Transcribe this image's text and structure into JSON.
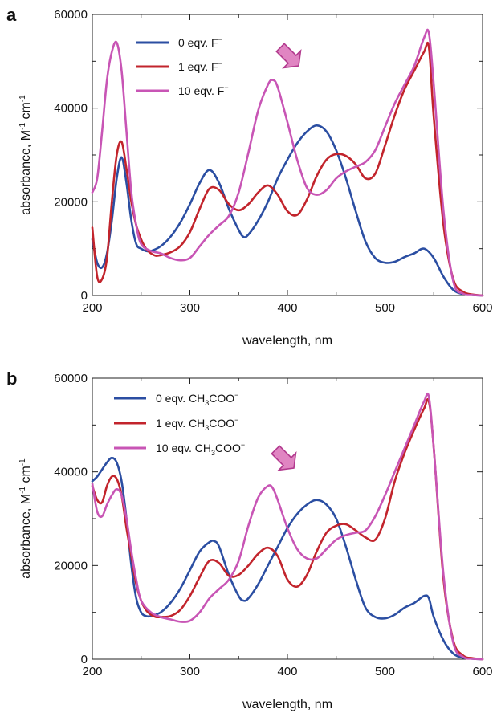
{
  "colors": {
    "blue": "#2b4ea2",
    "red": "#c2242c",
    "magenta": "#c855b5"
  },
  "chart_data": [
    {
      "type": "line",
      "panel": "a",
      "xlabel": "wavelength, nm",
      "ylabel": "absorbance, M",
      "xlim": [
        200,
        600
      ],
      "ylim": [
        0,
        60000
      ],
      "xticks": [
        "200",
        "300",
        "400",
        "500",
        "600"
      ],
      "yticks": [
        "0",
        "20000",
        "40000",
        "60000"
      ],
      "grid": false,
      "legend_position": "top-left",
      "annotation": "arrow-down-left",
      "series": [
        {
          "name": "0 eqv. F",
          "color": "#2b4ea2",
          "x": [
            200,
            205,
            210,
            215,
            220,
            225,
            230,
            235,
            240,
            245,
            250,
            255,
            260,
            270,
            280,
            290,
            300,
            310,
            320,
            330,
            340,
            350,
            355,
            360,
            370,
            380,
            390,
            400,
            410,
            420,
            430,
            440,
            450,
            460,
            470,
            480,
            490,
            500,
            510,
            520,
            530,
            540,
            550,
            560,
            570,
            580,
            590,
            600
          ],
          "y": [
            12000,
            7000,
            6000,
            9000,
            16000,
            25000,
            29500,
            24000,
            16000,
            11000,
            10000,
            9500,
            9500,
            10500,
            12500,
            15500,
            19500,
            24000,
            26800,
            24000,
            18500,
            14000,
            12500,
            13000,
            16000,
            20000,
            25000,
            29000,
            32500,
            35000,
            36300,
            35000,
            31000,
            25000,
            18000,
            11500,
            8000,
            7000,
            7200,
            8200,
            9000,
            10000,
            8000,
            4000,
            1200,
            300,
            100,
            0
          ]
        },
        {
          "name": "1 eqv. F",
          "color": "#c2242c",
          "x": [
            200,
            205,
            210,
            215,
            220,
            225,
            230,
            235,
            240,
            245,
            250,
            255,
            260,
            265,
            270,
            280,
            290,
            300,
            310,
            320,
            330,
            340,
            350,
            360,
            370,
            380,
            390,
            400,
            410,
            420,
            430,
            440,
            450,
            460,
            470,
            480,
            490,
            500,
            510,
            520,
            530,
            540,
            545,
            550,
            560,
            570,
            580,
            590,
            600
          ],
          "y": [
            14500,
            4000,
            3500,
            8000,
            20000,
            30000,
            32800,
            27000,
            20000,
            15000,
            12000,
            10000,
            9000,
            8500,
            8600,
            9200,
            10500,
            13500,
            18500,
            22800,
            22500,
            19500,
            18200,
            19500,
            22000,
            23500,
            21500,
            18000,
            17200,
            20500,
            25500,
            29000,
            30200,
            29800,
            28000,
            25000,
            26000,
            32000,
            38500,
            44000,
            48000,
            52000,
            53000,
            38000,
            15000,
            3500,
            800,
            200,
            0
          ]
        },
        {
          "name": "10 eqv. F",
          "color": "#c855b5",
          "x": [
            200,
            205,
            210,
            215,
            220,
            225,
            230,
            235,
            240,
            245,
            250,
            260,
            270,
            280,
            290,
            300,
            310,
            320,
            330,
            340,
            350,
            360,
            370,
            380,
            385,
            390,
            400,
            410,
            420,
            430,
            440,
            450,
            460,
            470,
            480,
            490,
            500,
            510,
            520,
            530,
            540,
            545,
            550,
            560,
            570,
            580,
            590,
            600
          ],
          "y": [
            22000,
            25000,
            35000,
            46000,
            52000,
            54000,
            48000,
            35000,
            22000,
            15000,
            11000,
            9500,
            9000,
            8000,
            7500,
            8000,
            10500,
            13000,
            15000,
            17000,
            22000,
            30500,
            39500,
            45000,
            46000,
            44500,
            37000,
            29000,
            23000,
            21500,
            22500,
            25000,
            26500,
            27500,
            28500,
            31000,
            36000,
            41000,
            45000,
            49000,
            55000,
            56000,
            45000,
            18000,
            3000,
            400,
            100,
            0
          ]
        }
      ]
    },
    {
      "type": "line",
      "panel": "b",
      "xlabel": "wavelength, nm",
      "ylabel": "absorbance, M",
      "xlim": [
        200,
        600
      ],
      "ylim": [
        0,
        60000
      ],
      "xticks": [
        "200",
        "300",
        "400",
        "500",
        "600"
      ],
      "yticks": [
        "0",
        "20000",
        "40000",
        "60000"
      ],
      "grid": false,
      "legend_position": "top-left",
      "annotation": "arrow-down-left",
      "series": [
        {
          "name": "0 eqv. CH3COO",
          "color": "#2b4ea2",
          "x": [
            200,
            205,
            210,
            215,
            220,
            225,
            230,
            235,
            240,
            245,
            250,
            255,
            260,
            270,
            280,
            290,
            300,
            310,
            320,
            325,
            330,
            340,
            350,
            355,
            360,
            370,
            380,
            390,
            400,
            410,
            420,
            430,
            440,
            450,
            460,
            470,
            480,
            490,
            500,
            510,
            520,
            530,
            540,
            545,
            550,
            560,
            570,
            580,
            590,
            600
          ],
          "y": [
            38000,
            39000,
            40500,
            42000,
            43000,
            42000,
            38000,
            30000,
            20000,
            13000,
            10000,
            9200,
            9200,
            10000,
            12000,
            15000,
            19000,
            23000,
            25000,
            25200,
            24000,
            18000,
            13500,
            12500,
            13000,
            16000,
            20000,
            24000,
            28000,
            31000,
            33000,
            34000,
            33000,
            30000,
            24000,
            17000,
            11000,
            9000,
            8700,
            9500,
            11000,
            12000,
            13500,
            13000,
            9000,
            4000,
            1200,
            300,
            100,
            0
          ]
        },
        {
          "name": "1 eqv. CH3COO",
          "color": "#c2242c",
          "x": [
            200,
            205,
            210,
            215,
            220,
            225,
            230,
            235,
            240,
            245,
            250,
            255,
            260,
            265,
            270,
            280,
            290,
            300,
            310,
            320,
            330,
            340,
            350,
            360,
            370,
            380,
            390,
            400,
            410,
            420,
            430,
            440,
            450,
            460,
            470,
            480,
            490,
            500,
            510,
            520,
            530,
            540,
            545,
            550,
            560,
            570,
            580,
            590,
            600
          ],
          "y": [
            37000,
            34000,
            33500,
            37000,
            39000,
            38500,
            35000,
            28000,
            22000,
            16000,
            12500,
            10500,
            9500,
            9000,
            9000,
            9200,
            10500,
            13500,
            17500,
            21000,
            20500,
            17800,
            18000,
            20000,
            22500,
            23800,
            22000,
            17000,
            15500,
            18000,
            23000,
            27000,
            28500,
            28800,
            27500,
            26000,
            25500,
            30000,
            38000,
            44000,
            49000,
            53500,
            55000,
            45000,
            17000,
            4000,
            800,
            200,
            0
          ]
        },
        {
          "name": "10 eqv. CH3COO",
          "color": "#c855b5",
          "x": [
            200,
            205,
            210,
            215,
            220,
            225,
            230,
            235,
            240,
            245,
            250,
            260,
            270,
            280,
            290,
            300,
            310,
            320,
            330,
            340,
            350,
            360,
            370,
            380,
            385,
            390,
            400,
            410,
            420,
            430,
            440,
            450,
            460,
            470,
            480,
            490,
            500,
            510,
            520,
            530,
            540,
            545,
            550,
            560,
            570,
            580,
            590,
            600
          ],
          "y": [
            37500,
            31500,
            30500,
            33000,
            35000,
            36300,
            35000,
            30000,
            23000,
            17000,
            12500,
            10000,
            9000,
            8500,
            8000,
            8200,
            10000,
            13000,
            15000,
            17000,
            21000,
            28500,
            34500,
            37000,
            36500,
            34000,
            28000,
            23500,
            21500,
            21500,
            23500,
            25500,
            26500,
            27000,
            27500,
            30500,
            35000,
            40000,
            45000,
            50000,
            55000,
            56000,
            45000,
            18000,
            3500,
            500,
            100,
            0
          ]
        }
      ]
    }
  ]
}
